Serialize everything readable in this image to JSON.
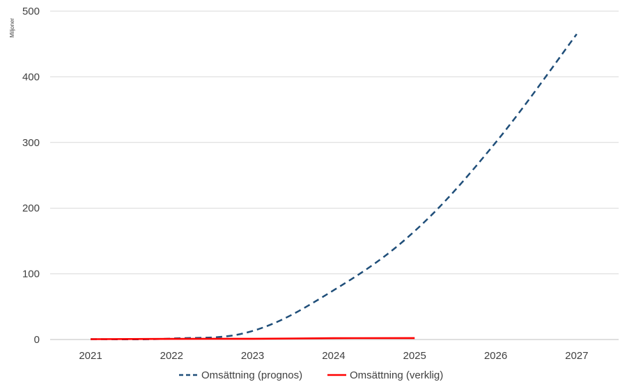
{
  "chart_data": {
    "type": "line",
    "title": "",
    "xlabel": "",
    "ylabel": "",
    "y_unit_label": "Miljoner",
    "categories": [
      "2021",
      "2022",
      "2023",
      "2024",
      "2025",
      "2026",
      "2027"
    ],
    "ylim": [
      0,
      500
    ],
    "y_ticks": [
      0,
      100,
      200,
      300,
      400,
      500
    ],
    "grid": true,
    "legend_position": "bottom",
    "series": [
      {
        "name": "Omsättning (prognos)",
        "color": "#1f4e79",
        "style": "dashed",
        "values": [
          0.5,
          1.5,
          13,
          75,
          165,
          300,
          465
        ]
      },
      {
        "name": "Omsättning (verklig)",
        "color": "#ff0000",
        "style": "solid",
        "values": [
          0.5,
          1,
          1.2,
          2,
          2.2,
          null,
          null
        ]
      }
    ]
  }
}
